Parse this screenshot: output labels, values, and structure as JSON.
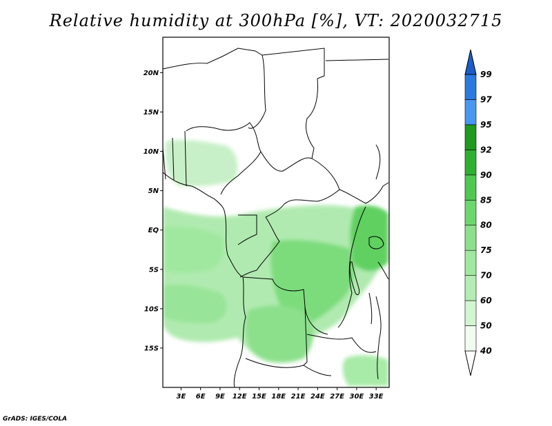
{
  "title": "Relative humidity at 300hPa [%], VT: 2020032715",
  "credit": "GrADS: IGES/COLA",
  "map": {
    "lat_ticks": [
      "20N",
      "15N",
      "10N",
      "5N",
      "EQ",
      "5S",
      "10S",
      "15S"
    ],
    "lon_ticks": [
      "3E",
      "6E",
      "9E",
      "12E",
      "15E",
      "18E",
      "21E",
      "24E",
      "27E",
      "30E",
      "33E"
    ],
    "lat_range": [
      -20,
      24.5
    ],
    "lon_range": [
      0.2,
      35
    ],
    "lat_values": [
      20,
      15,
      10,
      5,
      0,
      -5,
      -10,
      -15
    ],
    "lon_values": [
      3,
      6,
      9,
      12,
      15,
      18,
      21,
      24,
      27,
      30,
      33
    ]
  },
  "colorbar": {
    "levels": [
      "40",
      "50",
      "60",
      "70",
      "75",
      "80",
      "85",
      "90",
      "92",
      "95",
      "97",
      "99"
    ],
    "colors": [
      "#f0fcf0",
      "#d2f5d2",
      "#b4edb4",
      "#a0e8a0",
      "#8ce08c",
      "#6cd86c",
      "#50c850",
      "#30b030",
      "#1e9a1e",
      "#4898f0",
      "#2a7ae0",
      "#1a5ec8"
    ]
  }
}
